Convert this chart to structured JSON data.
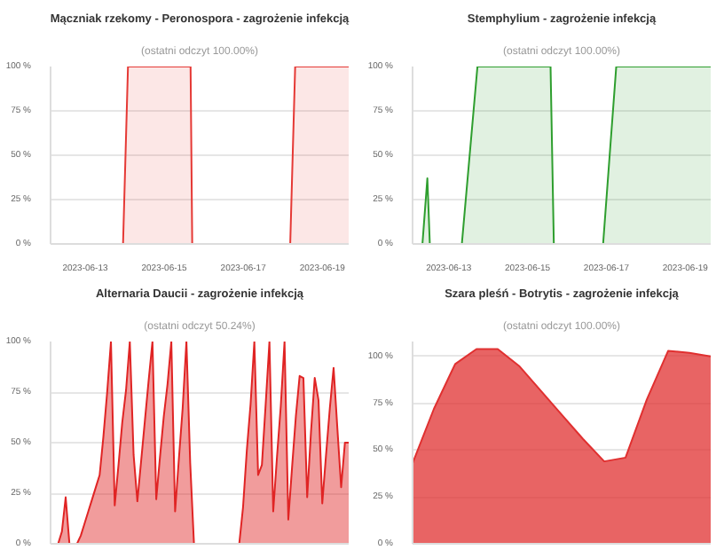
{
  "chart_data": [
    {
      "type": "area",
      "title": "Mączniak rzekomy - Peronospora - zagrożenie infekcją",
      "subtitle": "(ostatni odczyt 100.00%)",
      "grid": "y",
      "xlim": [
        "2023-06-12T03:00",
        "2023-06-19T16:00"
      ],
      "xticks": [
        "2023-06-13",
        "2023-06-15",
        "2023-06-17",
        "2023-06-19"
      ],
      "ylim": [
        0,
        100
      ],
      "yticks": [
        {
          "value": 0,
          "label": "0 %"
        },
        {
          "value": 25,
          "label": "25 %"
        },
        {
          "value": 50,
          "label": "50 %"
        },
        {
          "value": 75,
          "label": "75 %"
        },
        {
          "value": 100,
          "label": "100 %"
        }
      ],
      "series": [
        {
          "color": "#e53935",
          "x": [
            "2023-06-12T03:00",
            "2023-06-13T23:00",
            "2023-06-14T02:00",
            "2023-06-15T16:00",
            "2023-06-15T17:00",
            "2023-06-18T04:30",
            "2023-06-18T07:30",
            "2023-06-19T16:00"
          ],
          "values": [
            0,
            0,
            100,
            100,
            0,
            0,
            100,
            100
          ]
        }
      ]
    },
    {
      "type": "area",
      "title": "Stemphylium - zagrożenie infekcją",
      "subtitle": "(ostatni odczyt 100.00%)",
      "grid": "y",
      "xlim": [
        "2023-06-12T02:00",
        "2023-06-19T15:30"
      ],
      "xticks": [
        "2023-06-13",
        "2023-06-15",
        "2023-06-17",
        "2023-06-19"
      ],
      "ylim": [
        0,
        100
      ],
      "yticks": [
        {
          "value": 0,
          "label": "0 %"
        },
        {
          "value": 25,
          "label": "25 %"
        },
        {
          "value": 50,
          "label": "50 %"
        },
        {
          "value": 75,
          "label": "75 %"
        },
        {
          "value": 100,
          "label": "100 %"
        }
      ],
      "series": [
        {
          "color": "#2e9e2e",
          "x": [
            "2023-06-12T02:00",
            "2023-06-12T08:00",
            "2023-06-12T11:00",
            "2023-06-12T12:30",
            "2023-06-13T08:00",
            "2023-06-13T17:30",
            "2023-06-15T14:00",
            "2023-06-15T16:00",
            "2023-06-16T22:00",
            "2023-06-17T06:00",
            "2023-06-19T15:30"
          ],
          "values": [
            0,
            0,
            37,
            0,
            0,
            100,
            100,
            0,
            0,
            100,
            100
          ]
        }
      ]
    },
    {
      "type": "area",
      "title": "Alternaria Daucii - zagrożenie infekcją",
      "subtitle": "(ostatni odczyt 50.24%)",
      "grid": "y",
      "tick_labels": "y",
      "categories": [
        null,
        null,
        null,
        null,
        null,
        null,
        null,
        null,
        null,
        null,
        null,
        null,
        null,
        null,
        null,
        null,
        null,
        null,
        null,
        null,
        null,
        null,
        null,
        null,
        null,
        null,
        null,
        null,
        null,
        null,
        null,
        null,
        null,
        null,
        null,
        null,
        null,
        null,
        null,
        null,
        null,
        null,
        null,
        null,
        null,
        null,
        null,
        null,
        null,
        null,
        null,
        null,
        null,
        null,
        null,
        null,
        null,
        null,
        null,
        null,
        null,
        null,
        null,
        null,
        null,
        null,
        null,
        null,
        null,
        null,
        null,
        null,
        null,
        null,
        null,
        null,
        null,
        null,
        null,
        null
      ],
      "ylim": [
        0,
        100
      ],
      "yticks": [
        {
          "value": 0,
          "label": "0 %"
        },
        {
          "value": 25,
          "label": "25 %"
        },
        {
          "value": 50,
          "label": "50 %"
        },
        {
          "value": 75,
          "label": "75 %"
        },
        {
          "value": 100,
          "label": "100 %"
        }
      ],
      "series": [
        {
          "color": "#e02424",
          "values": [
            0,
            0,
            0,
            6,
            23,
            0,
            0,
            0,
            4,
            10,
            16,
            22,
            28,
            34,
            53,
            75,
            100,
            19,
            39,
            60,
            76,
            100,
            44,
            21,
            41,
            61,
            81,
            100,
            22,
            43,
            63,
            79,
            100,
            16,
            42,
            67,
            100,
            40,
            0,
            0,
            0,
            0,
            0,
            0,
            0,
            0,
            0,
            0,
            0,
            0,
            0,
            18,
            46,
            69,
            100,
            34,
            39,
            69,
            100,
            16,
            43,
            68,
            100,
            12,
            38,
            63,
            83,
            82,
            23,
            55,
            82,
            71,
            20,
            44,
            67,
            87,
            57,
            28,
            50,
            50
          ]
        }
      ]
    },
    {
      "type": "area",
      "title": "Szara pleśń - Botrytis - zagrożenie infekcją",
      "subtitle": "(ostatni odczyt 100.00%)",
      "grid": "y",
      "tick_labels": "y",
      "categories": [
        null,
        null,
        null,
        null,
        null,
        null,
        null,
        null,
        null,
        null,
        null,
        null,
        null,
        null,
        null
      ],
      "ylim": [
        0,
        108
      ],
      "yticks": [
        {
          "value": 0,
          "label": "0 %"
        },
        {
          "value": 25,
          "label": "25 %"
        },
        {
          "value": 50,
          "label": "50 %"
        },
        {
          "value": 75,
          "label": "75 %"
        },
        {
          "value": 100,
          "label": "100 %"
        }
      ],
      "series": [
        {
          "color": "#e03030",
          "values": [
            43,
            72,
            96,
            104,
            104,
            95,
            82,
            69,
            56,
            44,
            46,
            77,
            103,
            102,
            100
          ]
        }
      ]
    }
  ]
}
